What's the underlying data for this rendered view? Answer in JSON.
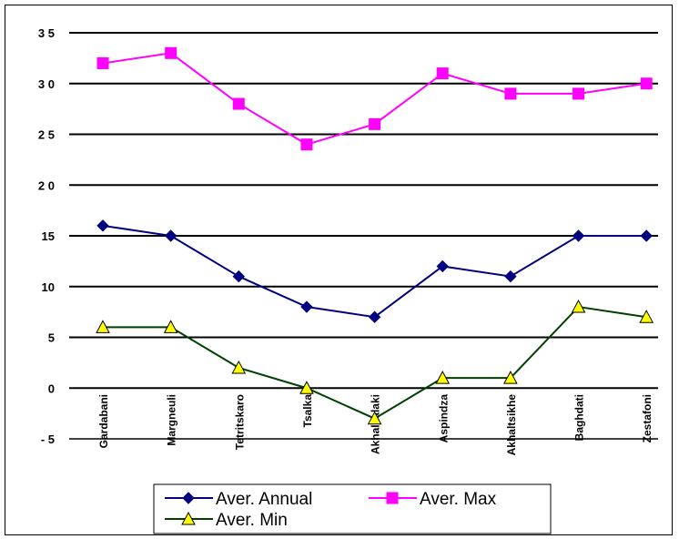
{
  "chart_data": {
    "type": "line",
    "categories": [
      "Gardabani",
      "Margneuli",
      "Tetritskaro",
      "Tsalka",
      "Akhalkalaki",
      "Aspindza",
      "Akhaltsikhe",
      "Baghdati",
      "Zestafoni"
    ],
    "yticks": [
      "3 5",
      "3 0",
      "2 5",
      "2 0",
      "15",
      "10",
      "5",
      "0",
      "- 5"
    ],
    "ylim": [
      -5,
      35
    ],
    "grid": true,
    "legend_position": "bottom",
    "series": [
      {
        "name": "Aver. Annual",
        "values": [
          16,
          15,
          11,
          8,
          7,
          12,
          11,
          15,
          15
        ],
        "color": "#000080",
        "marker_color": "#000080",
        "marker": "diamond"
      },
      {
        "name": "Aver. Max",
        "values": [
          32,
          33,
          28,
          24,
          26,
          31,
          29,
          29,
          30
        ],
        "color": "#ff00ff",
        "marker_color": "#ff00ff",
        "marker": "square"
      },
      {
        "name": "Aver. Min",
        "values": [
          6,
          6,
          2,
          0,
          -3,
          1,
          1,
          8,
          7
        ],
        "color": "#004000",
        "marker_color": "#ffff00",
        "marker": "triangle"
      }
    ]
  }
}
